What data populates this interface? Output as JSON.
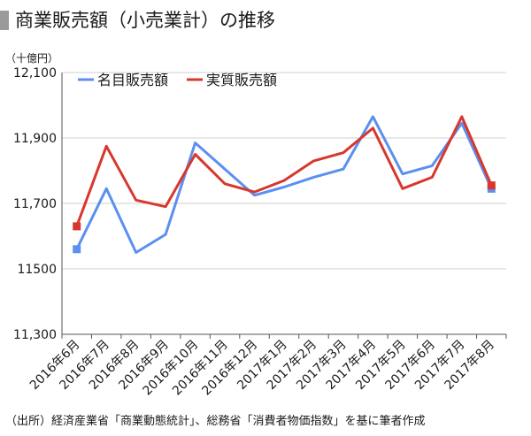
{
  "page": {
    "title": "商業販売額（小売業計）の推移",
    "unit_label": "（十億円）",
    "source": "（出所）経済産業省「商業動態統計」、総務省「消費者物価指数」を基に筆者作成"
  },
  "chart_data": {
    "type": "line",
    "title": "商業販売額（小売業計）の推移",
    "ylabel": "（十億円）",
    "ylim": [
      11300,
      12100
    ],
    "yticks": [
      11300,
      11500,
      11700,
      11900,
      12100
    ],
    "ytick_labels": [
      "11,300",
      "11500",
      "11,700",
      "11,900",
      "12,100"
    ],
    "categories": [
      "2016年6月",
      "2016年7月",
      "2016年8月",
      "2016年9月",
      "2016年10月",
      "2016年11月",
      "2016年12月",
      "2017年1月",
      "2017年2月",
      "2017年3月",
      "2017年4月",
      "2017年5月",
      "2017年6月",
      "2017年7月",
      "2017年8月"
    ],
    "grid": "horizontal",
    "legend_position": "top-left",
    "series": [
      {
        "name": "名目販売額",
        "color": "#5b8ff0",
        "values": [
          11560,
          11745,
          11550,
          11605,
          11885,
          11805,
          11725,
          11750,
          11780,
          11805,
          11965,
          11790,
          11815,
          11945,
          11745
        ]
      },
      {
        "name": "実質販売額",
        "color": "#d8372d",
        "values": [
          11630,
          11875,
          11710,
          11690,
          11850,
          11760,
          11735,
          11770,
          11830,
          11855,
          11930,
          11745,
          11780,
          11965,
          11755
        ]
      }
    ]
  }
}
